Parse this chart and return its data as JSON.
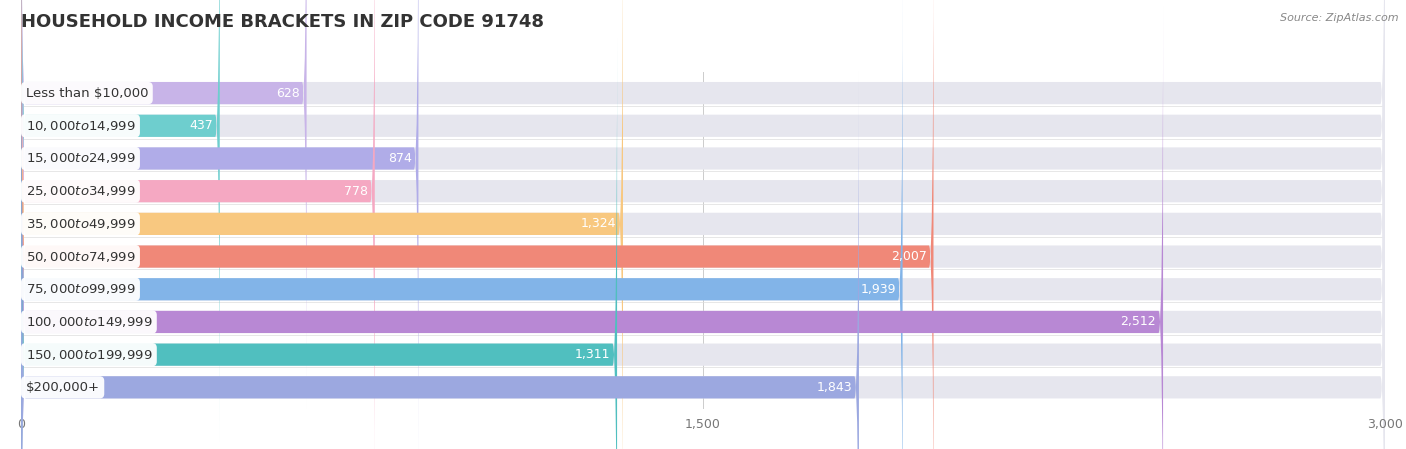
{
  "title": "HOUSEHOLD INCOME BRACKETS IN ZIP CODE 91748",
  "source": "Source: ZipAtlas.com",
  "categories": [
    "Less than $10,000",
    "$10,000 to $14,999",
    "$15,000 to $24,999",
    "$25,000 to $34,999",
    "$35,000 to $49,999",
    "$50,000 to $74,999",
    "$75,000 to $99,999",
    "$100,000 to $149,999",
    "$150,000 to $199,999",
    "$200,000+"
  ],
  "values": [
    628,
    437,
    874,
    778,
    1324,
    2007,
    1939,
    2512,
    1311,
    1843
  ],
  "bar_colors": [
    "#c8b4e8",
    "#6ecece",
    "#b0ace8",
    "#f5a8c2",
    "#f8c880",
    "#f08878",
    "#82b4e8",
    "#b888d4",
    "#50bfbf",
    "#9ca8e0"
  ],
  "background_color": "#f5f5f5",
  "bar_bg_color": "#e6e6ee",
  "xlim": [
    0,
    3000
  ],
  "xticks": [
    0,
    1500,
    3000
  ],
  "xtick_labels": [
    "0",
    "1,500",
    "3,000"
  ],
  "title_fontsize": 13,
  "label_fontsize": 9.5,
  "value_fontsize": 9
}
